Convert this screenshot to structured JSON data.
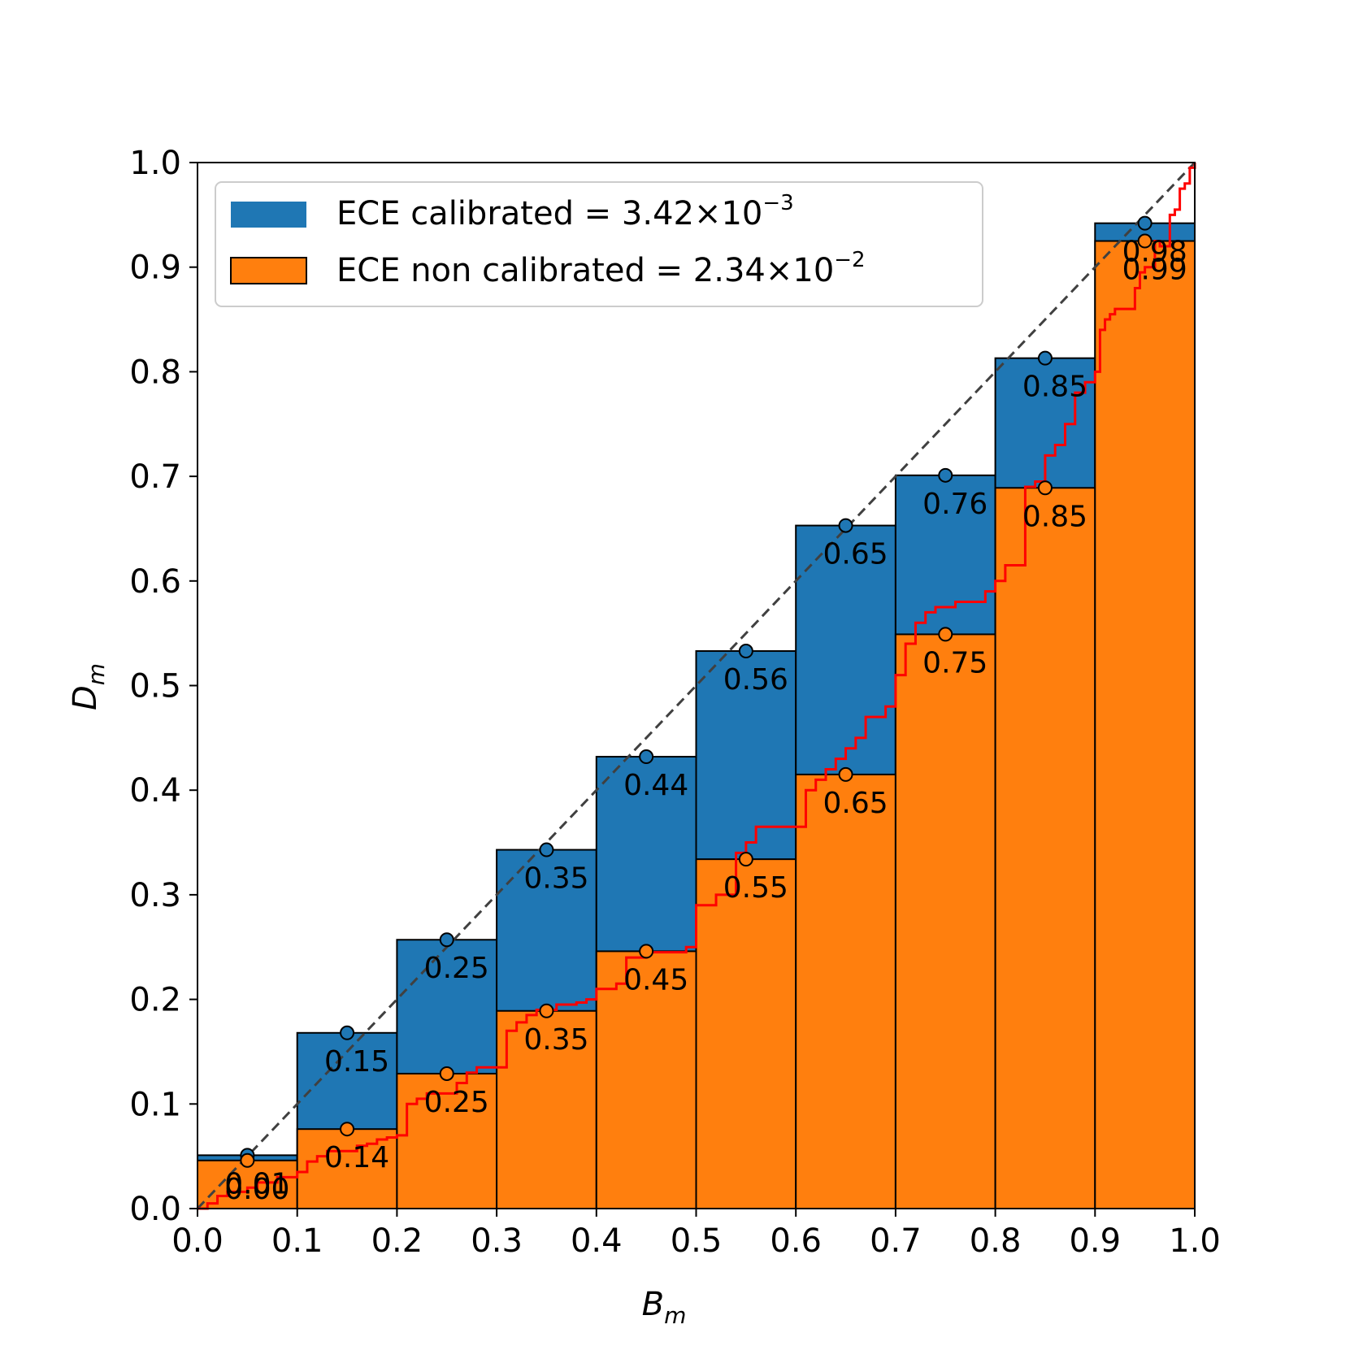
{
  "chart_data": {
    "type": "bar",
    "title": "",
    "xlabel": {
      "base": "B",
      "subscript": "m"
    },
    "ylabel": {
      "base": "D",
      "subscript": "m"
    },
    "xlim": [
      0.0,
      1.0
    ],
    "ylim": [
      0.0,
      1.0
    ],
    "xticks": [
      "0.0",
      "0.1",
      "0.2",
      "0.3",
      "0.4",
      "0.5",
      "0.6",
      "0.7",
      "0.8",
      "0.9",
      "1.0"
    ],
    "yticks": [
      "0.0",
      "0.1",
      "0.2",
      "0.3",
      "0.4",
      "0.5",
      "0.6",
      "0.7",
      "0.8",
      "0.9",
      "1.0"
    ],
    "bins": [
      [
        0.0,
        0.1
      ],
      [
        0.1,
        0.2
      ],
      [
        0.2,
        0.3
      ],
      [
        0.3,
        0.4
      ],
      [
        0.4,
        0.5
      ],
      [
        0.5,
        0.6
      ],
      [
        0.6,
        0.7
      ],
      [
        0.7,
        0.8
      ],
      [
        0.8,
        0.9
      ],
      [
        0.9,
        1.0
      ]
    ],
    "series": [
      {
        "name": "calibrated",
        "legend": {
          "text": "ECE calibrated = 3.42×10",
          "exponent": "−3"
        },
        "color": "#1f77b4",
        "values": [
          0.051,
          0.168,
          0.257,
          0.343,
          0.432,
          0.533,
          0.653,
          0.701,
          0.813,
          0.942
        ],
        "labels": [
          "0.01",
          "0.15",
          "0.25",
          "0.35",
          "0.44",
          "0.56",
          "0.65",
          "0.76",
          "0.85",
          "0.98"
        ]
      },
      {
        "name": "non calibrated",
        "legend": {
          "text": "ECE non calibrated = 2.34×10",
          "exponent": "−2"
        },
        "color": "#ff7f0e",
        "values": [
          0.046,
          0.076,
          0.129,
          0.189,
          0.246,
          0.334,
          0.415,
          0.549,
          0.689,
          0.925
        ],
        "labels": [
          "0.00",
          "0.14",
          "0.25",
          "0.35",
          "0.45",
          "0.55",
          "0.65",
          "0.75",
          "0.85",
          "0.99"
        ]
      }
    ],
    "diagonal": {
      "from": [
        0,
        0
      ],
      "to": [
        1,
        1
      ],
      "style": "dashed",
      "color": "#404040"
    },
    "reliability_curve": {
      "color": "#ff0000",
      "x": [
        0.0,
        0.01,
        0.02,
        0.03,
        0.05,
        0.06,
        0.08,
        0.1,
        0.11,
        0.12,
        0.13,
        0.15,
        0.16,
        0.17,
        0.18,
        0.19,
        0.2,
        0.21,
        0.22,
        0.23,
        0.25,
        0.26,
        0.27,
        0.28,
        0.3,
        0.31,
        0.32,
        0.33,
        0.34,
        0.36,
        0.38,
        0.39,
        0.4,
        0.42,
        0.43,
        0.45,
        0.48,
        0.49,
        0.5,
        0.52,
        0.53,
        0.54,
        0.55,
        0.56,
        0.58,
        0.6,
        0.61,
        0.62,
        0.63,
        0.64,
        0.65,
        0.66,
        0.67,
        0.68,
        0.69,
        0.7,
        0.71,
        0.72,
        0.73,
        0.74,
        0.76,
        0.78,
        0.79,
        0.8,
        0.81,
        0.82,
        0.83,
        0.84,
        0.85,
        0.86,
        0.87,
        0.88,
        0.89,
        0.9,
        0.905,
        0.91,
        0.915,
        0.92,
        0.93,
        0.94,
        0.945,
        0.95,
        0.96,
        0.965,
        0.97,
        0.975,
        0.98,
        0.985,
        0.99,
        0.995,
        1.0
      ],
      "y": [
        0.0,
        0.005,
        0.012,
        0.016,
        0.02,
        0.025,
        0.03,
        0.035,
        0.045,
        0.05,
        0.055,
        0.055,
        0.06,
        0.062,
        0.066,
        0.068,
        0.07,
        0.1,
        0.105,
        0.11,
        0.11,
        0.12,
        0.13,
        0.135,
        0.135,
        0.17,
        0.178,
        0.185,
        0.19,
        0.195,
        0.197,
        0.2,
        0.21,
        0.215,
        0.24,
        0.245,
        0.245,
        0.25,
        0.29,
        0.3,
        0.3,
        0.34,
        0.35,
        0.365,
        0.365,
        0.365,
        0.4,
        0.41,
        0.42,
        0.43,
        0.44,
        0.45,
        0.47,
        0.47,
        0.48,
        0.51,
        0.54,
        0.56,
        0.57,
        0.575,
        0.58,
        0.58,
        0.59,
        0.6,
        0.615,
        0.615,
        0.69,
        0.695,
        0.72,
        0.73,
        0.75,
        0.78,
        0.79,
        0.8,
        0.84,
        0.85,
        0.855,
        0.86,
        0.86,
        0.88,
        0.895,
        0.9,
        0.925,
        0.92,
        0.92,
        0.95,
        0.955,
        0.975,
        0.98,
        0.995,
        1.0
      ]
    }
  }
}
